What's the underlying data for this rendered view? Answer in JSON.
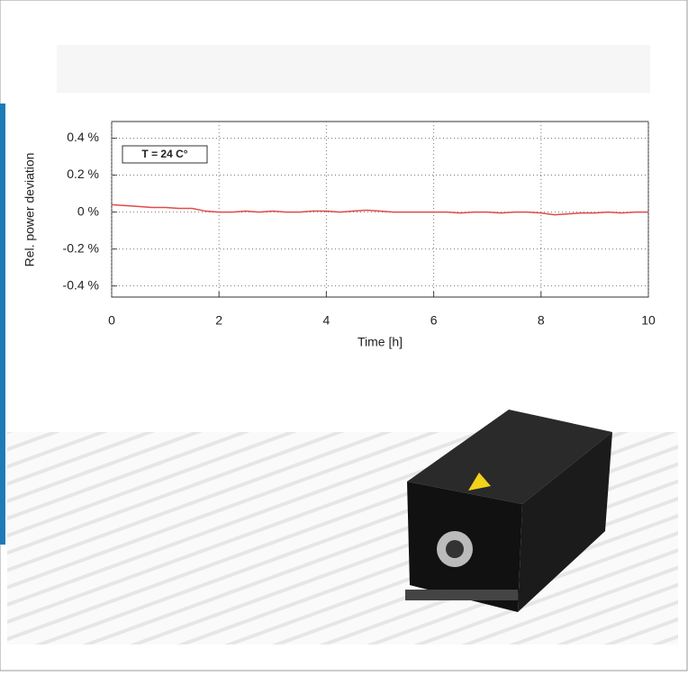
{
  "chart_data": {
    "type": "line",
    "xlabel": "Time [h]",
    "ylabel": "Rel. power deviation",
    "annotation": "T = 24 C°",
    "x": [
      0,
      0.25,
      0.5,
      0.75,
      1,
      1.25,
      1.5,
      1.75,
      2,
      2.25,
      2.5,
      2.75,
      3,
      3.25,
      3.5,
      3.75,
      4,
      4.25,
      4.5,
      4.75,
      5,
      5.25,
      5.5,
      5.75,
      6,
      6.25,
      6.5,
      6.75,
      7,
      7.25,
      7.5,
      7.75,
      8,
      8.25,
      8.5,
      8.75,
      9,
      9.25,
      9.5,
      9.75,
      10
    ],
    "values": [
      0.04,
      0.035,
      0.03,
      0.025,
      0.025,
      0.02,
      0.02,
      0.005,
      0,
      0,
      0.005,
      0,
      0.005,
      0,
      0,
      0.005,
      0.005,
      0,
      0.005,
      0.01,
      0.005,
      0,
      0,
      0,
      0,
      0,
      -0.005,
      0,
      0,
      -0.005,
      0,
      0,
      -0.005,
      -0.015,
      -0.01,
      -0.005,
      -0.005,
      0,
      -0.005,
      0,
      0
    ],
    "color": "#e04a4a",
    "xlim": [
      0,
      10
    ],
    "xticks": [
      0,
      2,
      4,
      6,
      8,
      10
    ],
    "ylim": [
      -0.46,
      0.49
    ],
    "yticks": [
      {
        "value": 0.4,
        "label": "0.4 %"
      },
      {
        "value": 0.2,
        "label": "0.2 %"
      },
      {
        "value": 0,
        "label": "0 %"
      },
      {
        "value": -0.2,
        "label": "-0.2 %"
      },
      {
        "value": -0.4,
        "label": "-0.4 %"
      }
    ],
    "grid": true
  }
}
